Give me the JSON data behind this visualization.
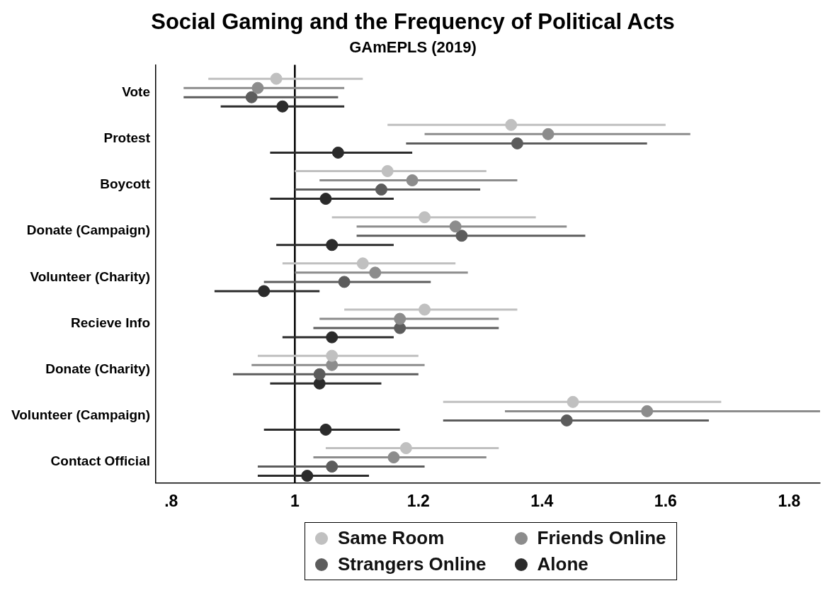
{
  "chart_data": {
    "type": "scatter",
    "title": "Social Gaming and the Frequency of Political Acts",
    "subtitle": "GAmEPLS (2019)",
    "orientation": "horizontal",
    "categories": [
      "Vote",
      "Protest",
      "Boycott",
      "Donate (Campaign)",
      "Volunteer (Charity)",
      "Recieve Info",
      "Donate (Charity)",
      "Volunteer (Campaign)",
      "Contact Official"
    ],
    "series": [
      {
        "name": "Same Room",
        "color": "#c0c0c0",
        "values": [
          0.97,
          1.35,
          1.15,
          1.21,
          1.11,
          1.21,
          1.06,
          1.45,
          1.18
        ],
        "errors": [
          [
            0.86,
            1.11
          ],
          [
            1.15,
            1.6
          ],
          [
            1.0,
            1.31
          ],
          [
            1.06,
            1.39
          ],
          [
            0.98,
            1.26
          ],
          [
            1.08,
            1.36
          ],
          [
            0.94,
            1.2
          ],
          [
            1.24,
            1.69
          ],
          [
            1.05,
            1.33
          ]
        ]
      },
      {
        "name": "Friends Online",
        "color": "#8c8c8c",
        "values": [
          0.94,
          1.41,
          1.19,
          1.26,
          1.13,
          1.17,
          1.06,
          1.57,
          1.16
        ],
        "errors": [
          [
            0.82,
            1.08
          ],
          [
            1.21,
            1.64
          ],
          [
            1.04,
            1.36
          ],
          [
            1.1,
            1.44
          ],
          [
            1.0,
            1.28
          ],
          [
            1.04,
            1.33
          ],
          [
            0.93,
            1.21
          ],
          [
            1.34,
            1.85
          ],
          [
            1.03,
            1.31
          ]
        ]
      },
      {
        "name": "Strangers Online",
        "color": "#5c5c5c",
        "values": [
          0.93,
          1.36,
          1.14,
          1.27,
          1.08,
          1.17,
          1.04,
          1.44,
          1.06
        ],
        "errors": [
          [
            0.82,
            1.07
          ],
          [
            1.18,
            1.57
          ],
          [
            1.0,
            1.3
          ],
          [
            1.1,
            1.47
          ],
          [
            0.95,
            1.22
          ],
          [
            1.03,
            1.33
          ],
          [
            0.9,
            1.2
          ],
          [
            1.24,
            1.67
          ],
          [
            0.94,
            1.21
          ]
        ]
      },
      {
        "name": "Alone",
        "color": "#2b2b2b",
        "values": [
          0.98,
          1.07,
          1.05,
          1.06,
          0.95,
          1.06,
          1.04,
          1.05,
          1.02
        ],
        "errors": [
          [
            0.88,
            1.08
          ],
          [
            0.96,
            1.19
          ],
          [
            0.96,
            1.16
          ],
          [
            0.97,
            1.16
          ],
          [
            0.87,
            1.04
          ],
          [
            0.98,
            1.16
          ],
          [
            0.96,
            1.14
          ],
          [
            0.95,
            1.17
          ],
          [
            0.94,
            1.12
          ]
        ]
      }
    ],
    "xlim": [
      0.775,
      1.85
    ],
    "xticks": [
      {
        "value": 0.8,
        "label": ".8"
      },
      1,
      1.2,
      1.4,
      1.6,
      1.8
    ],
    "ref_lines": [
      {
        "axis": "x",
        "value": 1,
        "color": "#000000"
      }
    ],
    "marker": "circle",
    "grid": false,
    "legend": "bottom"
  }
}
